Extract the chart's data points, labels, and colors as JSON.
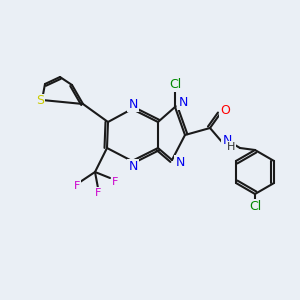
{
  "background_color": "#eaeff5",
  "bond_color": "#1a1a1a",
  "bond_width": 1.5,
  "figsize": [
    3.0,
    3.0
  ],
  "dpi": 100,
  "colors": {
    "S": "#cccc00",
    "N": "#0000ee",
    "O": "#ff0000",
    "Cl": "#008800",
    "F": "#cc00cc",
    "H": "#333333",
    "C": "#1a1a1a"
  }
}
